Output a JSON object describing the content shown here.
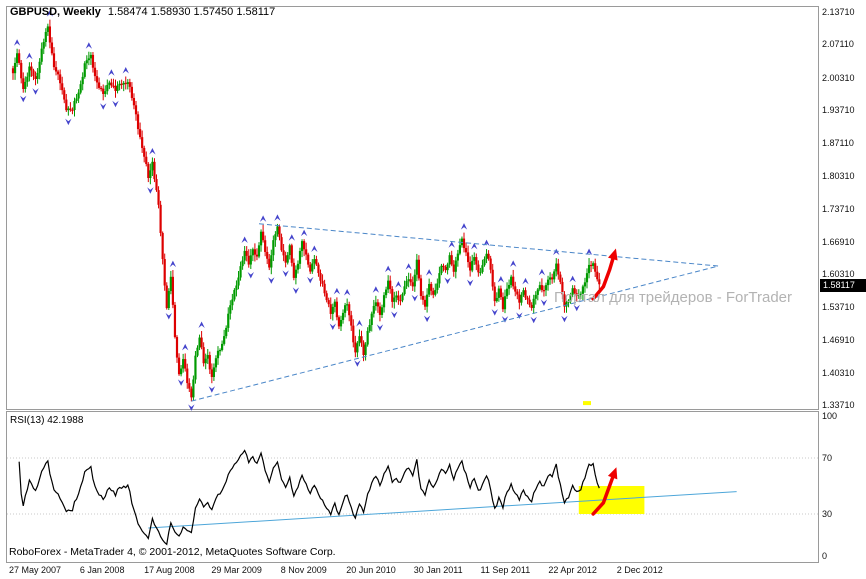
{
  "header": {
    "symbol": "GBPUSD, Weekly",
    "ohlc": "1.58474 1.58930 1.57450 1.58117"
  },
  "watermark": "Портал для трейдеров - ForTrader",
  "price_axis": {
    "labels": [
      "2.13710",
      "2.07110",
      "2.00310",
      "1.93710",
      "1.87110",
      "1.80310",
      "1.73710",
      "1.66910",
      "1.60310",
      "1.53710",
      "1.46910",
      "1.40310",
      "1.33710"
    ],
    "current_price_tag": "1.58117"
  },
  "time_axis": {
    "labels": [
      "27 May 2007",
      "6 Jan 2008",
      "17 Aug 2008",
      "29 Mar 2009",
      "8 Nov 2009",
      "20 Jun 2010",
      "30 Jan 2011",
      "11 Sep 2011",
      "22 Apr 2012",
      "2 Dec 2012"
    ]
  },
  "rsi_panel": {
    "label": "RSI(13) 42.1988",
    "axis_labels": [
      "100",
      "70",
      "30",
      "0"
    ]
  },
  "footer": {
    "copyright": "RoboForex - MetaTrader 4, © 2001-2012, MetaQuotes Software Corp."
  },
  "chart_data": {
    "type": "candlestick",
    "symbol": "GBPUSD",
    "timeframe": "Weekly",
    "open": 1.58474,
    "high": 1.5893,
    "low": 1.5745,
    "close": 1.58117,
    "y_axis": {
      "min": 1.3371,
      "max": 2.1371,
      "tick_step": 0.066
    },
    "bar_count": 287,
    "price_keypoints": [
      [
        0,
        2.01
      ],
      [
        2,
        2.05
      ],
      [
        5,
        1.985
      ],
      [
        8,
        2.02
      ],
      [
        11,
        2.0
      ],
      [
        14,
        2.06
      ],
      [
        17,
        2.105
      ],
      [
        20,
        2.03
      ],
      [
        23,
        1.99
      ],
      [
        26,
        1.945
      ],
      [
        29,
        1.935
      ],
      [
        32,
        1.975
      ],
      [
        35,
        2.03
      ],
      [
        38,
        2.045
      ],
      [
        41,
        1.995
      ],
      [
        44,
        1.965
      ],
      [
        47,
        2.0
      ],
      [
        50,
        1.975
      ],
      [
        53,
        1.995
      ],
      [
        56,
        1.995
      ],
      [
        58,
        1.96
      ],
      [
        60,
        1.93
      ],
      [
        63,
        1.86
      ],
      [
        66,
        1.8
      ],
      [
        68,
        1.835
      ],
      [
        71,
        1.74
      ],
      [
        73,
        1.63
      ],
      [
        75,
        1.54
      ],
      [
        77,
        1.6
      ],
      [
        79,
        1.47
      ],
      [
        81,
        1.4
      ],
      [
        83,
        1.435
      ],
      [
        85,
        1.38
      ],
      [
        87,
        1.35
      ],
      [
        89,
        1.44
      ],
      [
        91,
        1.475
      ],
      [
        93,
        1.42
      ],
      [
        95,
        1.44
      ],
      [
        97,
        1.395
      ],
      [
        99,
        1.43
      ],
      [
        101,
        1.45
      ],
      [
        103,
        1.48
      ],
      [
        105,
        1.52
      ],
      [
        107,
        1.55
      ],
      [
        109,
        1.585
      ],
      [
        111,
        1.62
      ],
      [
        113,
        1.645
      ],
      [
        115,
        1.625
      ],
      [
        117,
        1.66
      ],
      [
        119,
        1.635
      ],
      [
        121,
        1.685
      ],
      [
        123,
        1.655
      ],
      [
        125,
        1.62
      ],
      [
        127,
        1.665
      ],
      [
        129,
        1.7
      ],
      [
        131,
        1.66
      ],
      [
        133,
        1.625
      ],
      [
        135,
        1.655
      ],
      [
        137,
        1.6
      ],
      [
        139,
        1.63
      ],
      [
        141,
        1.665
      ],
      [
        143,
        1.64
      ],
      [
        145,
        1.615
      ],
      [
        147,
        1.635
      ],
      [
        149,
        1.6
      ],
      [
        151,
        1.585
      ],
      [
        153,
        1.555
      ],
      [
        155,
        1.52
      ],
      [
        157,
        1.545
      ],
      [
        159,
        1.5
      ],
      [
        161,
        1.525
      ],
      [
        163,
        1.54
      ],
      [
        165,
        1.5
      ],
      [
        167,
        1.445
      ],
      [
        169,
        1.475
      ],
      [
        171,
        1.44
      ],
      [
        173,
        1.49
      ],
      [
        175,
        1.52
      ],
      [
        177,
        1.545
      ],
      [
        179,
        1.525
      ],
      [
        181,
        1.56
      ],
      [
        183,
        1.585
      ],
      [
        185,
        1.55
      ],
      [
        187,
        1.565
      ],
      [
        189,
        1.545
      ],
      [
        191,
        1.575
      ],
      [
        193,
        1.6
      ],
      [
        195,
        1.58
      ],
      [
        197,
        1.625
      ],
      [
        199,
        1.56
      ],
      [
        201,
        1.545
      ],
      [
        203,
        1.58
      ],
      [
        205,
        1.555
      ],
      [
        207,
        1.59
      ],
      [
        209,
        1.625
      ],
      [
        211,
        1.605
      ],
      [
        213,
        1.64
      ],
      [
        215,
        1.615
      ],
      [
        217,
        1.645
      ],
      [
        219,
        1.67
      ],
      [
        221,
        1.65
      ],
      [
        223,
        1.615
      ],
      [
        225,
        1.635
      ],
      [
        227,
        1.605
      ],
      [
        229,
        1.625
      ],
      [
        231,
        1.645
      ],
      [
        233,
        1.61
      ],
      [
        235,
        1.55
      ],
      [
        237,
        1.575
      ],
      [
        239,
        1.53
      ],
      [
        241,
        1.575
      ],
      [
        243,
        1.6
      ],
      [
        245,
        1.565
      ],
      [
        247,
        1.545
      ],
      [
        249,
        1.575
      ],
      [
        251,
        1.55
      ],
      [
        253,
        1.53
      ],
      [
        255,
        1.565
      ],
      [
        257,
        1.585
      ],
      [
        259,
        1.565
      ],
      [
        261,
        1.59
      ],
      [
        263,
        1.6
      ],
      [
        265,
        1.625
      ],
      [
        267,
        1.58
      ],
      [
        269,
        1.54
      ],
      [
        271,
        1.555
      ],
      [
        273,
        1.57
      ],
      [
        275,
        1.555
      ],
      [
        277,
        1.57
      ],
      [
        279,
        1.59
      ],
      [
        281,
        1.615
      ],
      [
        283,
        1.625
      ],
      [
        285,
        1.6
      ],
      [
        286,
        1.581
      ]
    ],
    "indicators": {
      "fractals": true,
      "rsi": {
        "period": 13,
        "value": 42.1988,
        "levels": [
          70,
          30
        ]
      }
    },
    "trendlines": {
      "triangle_upper": {
        "name": "triangle-upper-line",
        "from": [
          120,
          1.706
        ],
        "to": [
          344,
          1.62
        ],
        "style": "dashed",
        "color": "#4a86c8"
      },
      "triangle_lower": {
        "name": "triangle-lower-line",
        "from": [
          87,
          1.345
        ],
        "to": [
          344,
          1.62
        ],
        "style": "dashed",
        "color": "#4a86c8"
      },
      "rsi_support": {
        "name": "rsi-support-line",
        "from": [
          66,
          20
        ],
        "to": [
          353,
          46
        ],
        "style": "solid",
        "color": "#4da6d9"
      }
    },
    "annotations": {
      "main_arrow": {
        "color": "#ee0000",
        "points": [
          [
            283,
            1.553
          ],
          [
            288,
            1.578
          ],
          [
            291,
            1.612
          ],
          [
            293,
            1.64
          ]
        ]
      },
      "rsi_arrow": {
        "color": "#ee0000",
        "points": [
          [
            283,
            30
          ],
          [
            288,
            38
          ],
          [
            291,
            50
          ],
          [
            293,
            58
          ]
        ]
      },
      "rsi_highlight": {
        "color": "#ffff00",
        "from_bar": 276,
        "to_bar": 308,
        "v_min": 30,
        "v_max": 50
      },
      "yellow_mark": {
        "color": "#ffff00",
        "bar": 280,
        "price": 1.341
      }
    },
    "colors": {
      "up": "#009a00",
      "down": "#dd0000",
      "fractal": "#4444cc",
      "rsi_line": "#000000",
      "background": "#ffffff",
      "frame": "#9a9a9a"
    }
  }
}
